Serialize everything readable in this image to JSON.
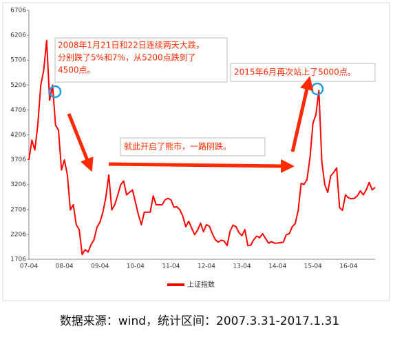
{
  "chart_data": {
    "type": "line",
    "categories": [
      "07-04",
      null,
      null,
      null,
      null,
      null,
      null,
      null,
      null,
      null,
      null,
      null,
      "08-04",
      null,
      null,
      null,
      null,
      null,
      null,
      null,
      null,
      null,
      null,
      null,
      "09-04",
      null,
      null,
      null,
      null,
      null,
      null,
      null,
      null,
      null,
      null,
      null,
      "10-04",
      null,
      null,
      null,
      null,
      null,
      null,
      null,
      null,
      null,
      null,
      null,
      "11-04",
      null,
      null,
      null,
      null,
      null,
      null,
      null,
      null,
      null,
      null,
      null,
      "12-04",
      null,
      null,
      null,
      null,
      null,
      null,
      null,
      null,
      null,
      null,
      null,
      "13-04",
      null,
      null,
      null,
      null,
      null,
      null,
      null,
      null,
      null,
      null,
      null,
      "14-04",
      null,
      null,
      null,
      null,
      null,
      null,
      null,
      null,
      null,
      null,
      null,
      "15-04",
      null,
      null,
      null,
      null,
      null,
      null,
      null,
      null,
      null,
      null,
      null,
      "16-04",
      null,
      null,
      null,
      null,
      null,
      null,
      null,
      null,
      null
    ],
    "series": [
      {
        "name": "上证指数",
        "color": "#ff0000",
        "values": [
          3700,
          4100,
          3900,
          4400,
          5200,
          5500,
          6100,
          4900,
          5200,
          4400,
          4300,
          3500,
          3700,
          3400,
          2700,
          2800,
          2400,
          2300,
          1800,
          1900,
          1850,
          2000,
          2100,
          2350,
          2450,
          2650,
          2950,
          3400,
          2700,
          2800,
          2990,
          3200,
          3280,
          3000,
          3050,
          3100,
          2850,
          2600,
          2400,
          2650,
          2650,
          2650,
          2980,
          2800,
          2800,
          2800,
          2900,
          2930,
          2900,
          2750,
          2760,
          2700,
          2570,
          2360,
          2470,
          2330,
          2200,
          2290,
          2430,
          2260,
          2400,
          2370,
          2220,
          2100,
          2050,
          2090,
          2070,
          1980,
          2270,
          2390,
          2360,
          2240,
          2180,
          2300,
          1980,
          1990,
          2100,
          2170,
          2140,
          2220,
          2120,
          2030,
          2060,
          2030,
          2030,
          2040,
          2050,
          2200,
          2220,
          2360,
          2420,
          2680,
          3230,
          3210,
          3310,
          3750,
          4440,
          4610,
          5100,
          3660,
          3200,
          3050,
          3380,
          3450,
          3540,
          2740,
          2690,
          3000,
          2940,
          2920,
          2930,
          2980,
          3080,
          3000,
          3100,
          3250,
          3100,
          3150
        ]
      }
    ],
    "ylim": [
      1706,
      6706
    ],
    "yticks": [
      1706,
      2206,
      2706,
      3206,
      3706,
      4206,
      4706,
      5206,
      5706,
      6206,
      6706
    ],
    "annotations": [
      {
        "lines": [
          "2008年1月21日和22日连续两天大跌，",
          "分别跌了5%和7%，从5200点跌到了",
          "4500点。"
        ]
      },
      {
        "lines": [
          "2015年6月再次站上了5000点。"
        ]
      },
      {
        "lines": [
          "就此开启了熊市，一路阴跌。"
        ]
      }
    ],
    "source": "数据来源：wind，统计区间：2007.3.31-2017.1.31"
  }
}
